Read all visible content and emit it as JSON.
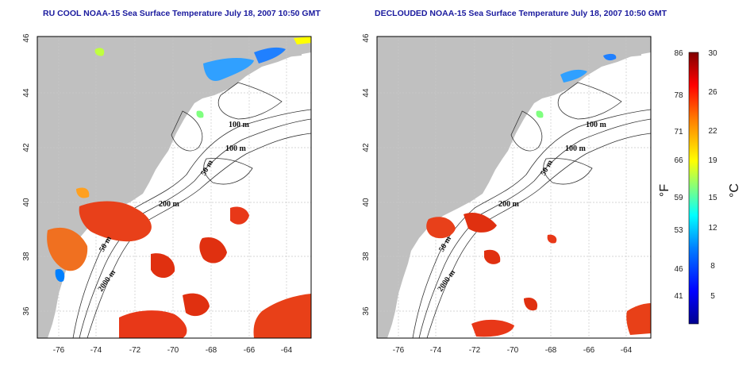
{
  "left_panel": {
    "title": "RU COOL NOAA-15 Sea Surface Temperature July 18, 2007 10:50 GMT",
    "contour_labels": [
      "100 m",
      "100 m",
      "50 m",
      "200 m",
      "50 m",
      "2000 m"
    ]
  },
  "right_panel": {
    "title": "DECLOUDED NOAA-15 Sea Surface Temperature July 18, 2007 10:50 GMT",
    "contour_labels": [
      "100 m",
      "100 m",
      "50 m",
      "200 m",
      "50 m",
      "2000 m"
    ]
  },
  "axes": {
    "lon_ticks": [
      "-76",
      "-74",
      "-72",
      "-70",
      "-68",
      "-66",
      "-64"
    ],
    "lat_ticks": [
      "46",
      "44",
      "42",
      "40",
      "38",
      "36"
    ],
    "lon_range": [
      -77,
      -63
    ],
    "lat_range": [
      35,
      46
    ]
  },
  "colorbar": {
    "unit_f": "°F",
    "unit_c": "°C",
    "f_ticks": [
      "86",
      "78",
      "71",
      "66",
      "59",
      "53",
      "46",
      "41"
    ],
    "c_ticks": [
      "30",
      "26",
      "22",
      "19",
      "15",
      "12",
      "8",
      "5"
    ],
    "c_range": [
      3,
      30
    ],
    "colors": [
      "#00008f",
      "#0000ff",
      "#0080ff",
      "#00ffff",
      "#80ff80",
      "#ffff00",
      "#ff8000",
      "#ff0000",
      "#800000"
    ]
  },
  "colors": {
    "land": "#c0c0c0",
    "ocean": "#ffffff",
    "sst_warm": "#e03010",
    "title": "#1a1a9e"
  }
}
